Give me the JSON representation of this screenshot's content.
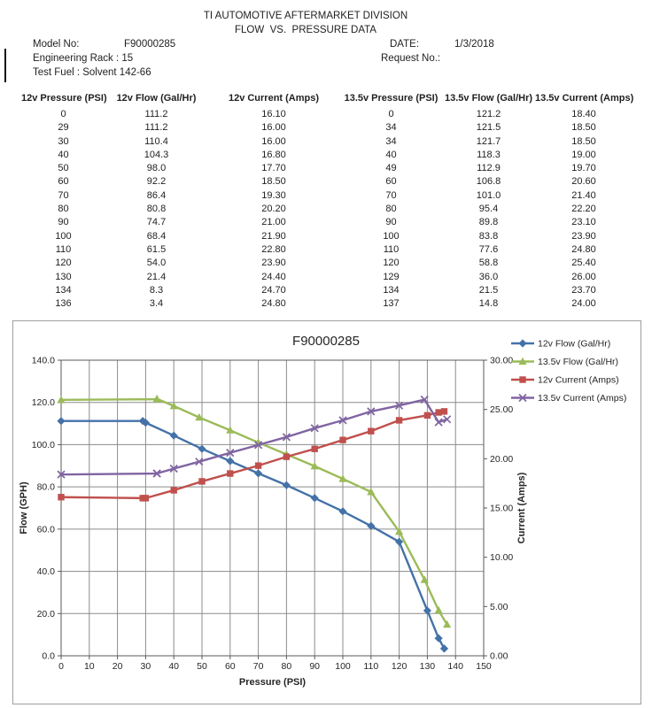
{
  "header": {
    "title": "TI AUTOMOTIVE AFTERMARKET DIVISION",
    "subtitle": "FLOW  VS.  PRESSURE DATA",
    "model_no_label": "Model No:",
    "model_no": "F90000285",
    "engineering_rack": "Engineering Rack : 15",
    "test_fuel": "Test Fuel : Solvent 142-66",
    "date_label": "DATE:",
    "date": "1/3/2018",
    "request_no_label": "Request No.:"
  },
  "table": {
    "columns": [
      "12v Pressure (PSI)",
      "12v Flow (Gal/Hr)",
      "12v Current (Amps)",
      "13.5v Pressure (PSI)",
      "13.5v Flow (Gal/Hr)",
      "13.5v Current (Amps)"
    ],
    "rows": [
      [
        "0",
        "111.2",
        "16.10",
        "0",
        "121.2",
        "18.40"
      ],
      [
        "29",
        "111.2",
        "16.00",
        "34",
        "121.5",
        "18.50"
      ],
      [
        "30",
        "110.4",
        "16.00",
        "34",
        "121.7",
        "18.50"
      ],
      [
        "40",
        "104.3",
        "16.80",
        "40",
        "118.3",
        "19.00"
      ],
      [
        "50",
        "98.0",
        "17.70",
        "49",
        "112.9",
        "19.70"
      ],
      [
        "60",
        "92.2",
        "18.50",
        "60",
        "106.8",
        "20.60"
      ],
      [
        "70",
        "86.4",
        "19.30",
        "70",
        "101.0",
        "21.40"
      ],
      [
        "80",
        "80.8",
        "20.20",
        "80",
        "95.4",
        "22.20"
      ],
      [
        "90",
        "74.7",
        "21.00",
        "90",
        "89.8",
        "23.10"
      ],
      [
        "100",
        "68.4",
        "21.90",
        "100",
        "83.8",
        "23.90"
      ],
      [
        "110",
        "61.5",
        "22.80",
        "110",
        "77.6",
        "24.80"
      ],
      [
        "120",
        "54.0",
        "23.90",
        "120",
        "58.8",
        "25.40"
      ],
      [
        "130",
        "21.4",
        "24.40",
        "129",
        "36.0",
        "26.00"
      ],
      [
        "134",
        "8.3",
        "24.70",
        "134",
        "21.5",
        "23.70"
      ],
      [
        "136",
        "3.4",
        "24.80",
        "137",
        "14.8",
        "24.00"
      ]
    ]
  },
  "chart_data": {
    "type": "line",
    "title": "F90000285",
    "xlabel": "Pressure (PSI)",
    "ylabel_left": "Flow (GPH)",
    "ylabel_right": "Current (Amps)",
    "xlim": [
      0,
      150
    ],
    "xtick_step": 10,
    "ylim_left": [
      0,
      140
    ],
    "ytick_step_left": 20,
    "ytick_decimals_left": 1,
    "ylim_right": [
      0,
      30
    ],
    "ytick_step_right": 5,
    "ytick_decimals_right": 2,
    "grid": true,
    "legend_position": "top-right",
    "colors": {
      "grid": "#8c8c8c",
      "frame": "#595959"
    },
    "series": [
      {
        "name": "12v Flow (Gal/Hr)",
        "axis": "left",
        "color": "#4472a8",
        "marker": "diamond",
        "x": [
          0,
          29,
          30,
          40,
          50,
          60,
          70,
          80,
          90,
          100,
          110,
          120,
          130,
          134,
          136
        ],
        "y": [
          111.2,
          111.2,
          110.4,
          104.3,
          98.0,
          92.2,
          86.4,
          80.8,
          74.7,
          68.4,
          61.5,
          54.0,
          21.4,
          8.3,
          3.4
        ]
      },
      {
        "name": "13.5v Flow (Gal/Hr)",
        "axis": "left",
        "color": "#9bbb59",
        "marker": "triangle",
        "x": [
          0,
          34,
          34,
          40,
          49,
          60,
          70,
          80,
          90,
          100,
          110,
          120,
          129,
          134,
          137
        ],
        "y": [
          121.2,
          121.5,
          121.7,
          118.3,
          112.9,
          106.8,
          101.0,
          95.4,
          89.8,
          83.8,
          77.6,
          58.8,
          36.0,
          21.5,
          14.8
        ]
      },
      {
        "name": "12v Current (Amps)",
        "axis": "right",
        "color": "#c0504d",
        "marker": "square",
        "x": [
          0,
          29,
          30,
          40,
          50,
          60,
          70,
          80,
          90,
          100,
          110,
          120,
          130,
          134,
          136
        ],
        "y": [
          16.1,
          16.0,
          16.0,
          16.8,
          17.7,
          18.5,
          19.3,
          20.2,
          21.0,
          21.9,
          22.8,
          23.9,
          24.4,
          24.7,
          24.8
        ]
      },
      {
        "name": "13.5v Current (Amps)",
        "axis": "right",
        "color": "#8064a2",
        "marker": "x",
        "x": [
          0,
          34,
          34,
          40,
          49,
          60,
          70,
          80,
          90,
          100,
          110,
          120,
          129,
          134,
          137
        ],
        "y": [
          18.4,
          18.5,
          18.5,
          19.0,
          19.7,
          20.6,
          21.4,
          22.2,
          23.1,
          23.9,
          24.8,
          25.4,
          26.0,
          23.7,
          24.0
        ]
      }
    ]
  }
}
